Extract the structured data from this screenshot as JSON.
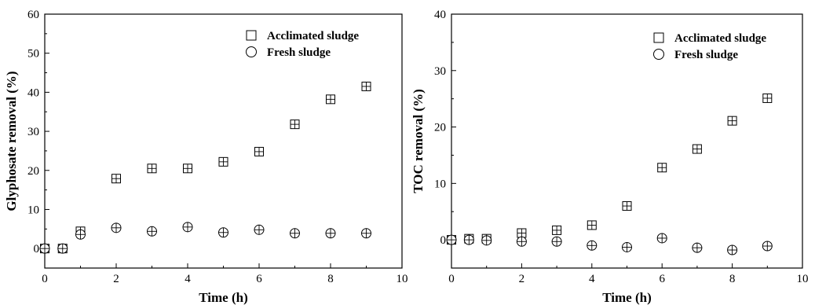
{
  "chart_data": [
    {
      "type": "scatter",
      "title": "",
      "xlabel": "Time (h)",
      "ylabel": "Glyphosate removal (%)",
      "xlim": [
        0,
        10
      ],
      "ylim": [
        -5,
        60
      ],
      "xticks": [
        0,
        2,
        4,
        6,
        8,
        10
      ],
      "yticks": [
        0,
        10,
        20,
        30,
        40,
        50,
        60
      ],
      "legend_position": "top-right",
      "series": [
        {
          "name": "Acclimated sludge",
          "marker": "square",
          "points": [
            {
              "x": 0,
              "y": 0
            },
            {
              "x": 0.5,
              "y": 0
            },
            {
              "x": 1,
              "y": 4.4
            },
            {
              "x": 2,
              "y": 17.9
            },
            {
              "x": 3,
              "y": 20.5
            },
            {
              "x": 4,
              "y": 20.5
            },
            {
              "x": 5,
              "y": 22.2
            },
            {
              "x": 6,
              "y": 24.8
            },
            {
              "x": 7,
              "y": 31.8
            },
            {
              "x": 8,
              "y": 38.2
            },
            {
              "x": 9,
              "y": 41.5
            }
          ]
        },
        {
          "name": "Fresh sludge",
          "marker": "circle",
          "points": [
            {
              "x": 0,
              "y": 0
            },
            {
              "x": 0.5,
              "y": 0
            },
            {
              "x": 1,
              "y": 3.6
            },
            {
              "x": 2,
              "y": 5.3
            },
            {
              "x": 3,
              "y": 4.4
            },
            {
              "x": 4,
              "y": 5.5
            },
            {
              "x": 5,
              "y": 4.1
            },
            {
              "x": 6,
              "y": 4.8
            },
            {
              "x": 7,
              "y": 3.9
            },
            {
              "x": 8,
              "y": 3.9
            },
            {
              "x": 9,
              "y": 3.9
            }
          ]
        }
      ]
    },
    {
      "type": "scatter",
      "title": "",
      "xlabel": "Time (h)",
      "ylabel": "TOC removal (%)",
      "xlim": [
        0,
        10
      ],
      "ylim": [
        -5,
        40
      ],
      "xticks": [
        0,
        2,
        4,
        6,
        8,
        10
      ],
      "yticks": [
        0,
        10,
        20,
        30,
        40
      ],
      "legend_position": "top-right",
      "series": [
        {
          "name": "Acclimated sludge",
          "marker": "square",
          "points": [
            {
              "x": 0,
              "y": 0
            },
            {
              "x": 0.5,
              "y": 0.2
            },
            {
              "x": 1,
              "y": 0.2
            },
            {
              "x": 2,
              "y": 1.2
            },
            {
              "x": 3,
              "y": 1.7
            },
            {
              "x": 4,
              "y": 2.6
            },
            {
              "x": 5,
              "y": 6.0
            },
            {
              "x": 6,
              "y": 12.8
            },
            {
              "x": 7,
              "y": 16.1
            },
            {
              "x": 8,
              "y": 21.1
            },
            {
              "x": 9,
              "y": 25.1
            }
          ]
        },
        {
          "name": "Fresh sludge",
          "marker": "circle",
          "points": [
            {
              "x": 0,
              "y": 0
            },
            {
              "x": 0.5,
              "y": 0
            },
            {
              "x": 1,
              "y": -0.1
            },
            {
              "x": 2,
              "y": -0.3
            },
            {
              "x": 3,
              "y": -0.3
            },
            {
              "x": 4,
              "y": -1.0
            },
            {
              "x": 5,
              "y": -1.3
            },
            {
              "x": 6,
              "y": 0.3
            },
            {
              "x": 7,
              "y": -1.4
            },
            {
              "x": 8,
              "y": -1.8
            },
            {
              "x": 9,
              "y": -1.1
            }
          ]
        }
      ]
    }
  ]
}
